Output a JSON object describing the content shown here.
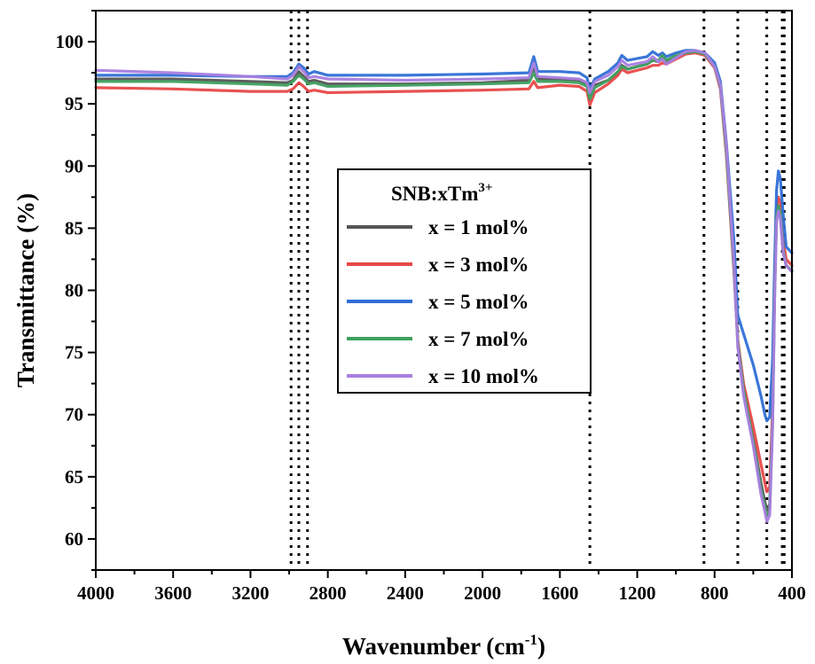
{
  "chart_data": {
    "type": "line",
    "title": "",
    "xlabel": "Wavenumber (cm",
    "xlabel_sup": "-1",
    "xlabel_end": ")",
    "ylabel": "Transmittance (%)",
    "xlim": [
      4000,
      400
    ],
    "ylim": [
      57.5,
      102.5
    ],
    "x_reversed": true,
    "x_ticks": [
      4000,
      3600,
      3200,
      2800,
      2400,
      2000,
      1600,
      1200,
      800,
      400
    ],
    "y_ticks": [
      60,
      65,
      70,
      75,
      80,
      85,
      90,
      95,
      100
    ],
    "grid": false,
    "reference_lines_x": [
      2990,
      2950,
      2905,
      1445,
      855,
      680,
      530,
      450,
      440
    ],
    "legend": {
      "title": "SNB:xTm",
      "title_sup": "3+",
      "placement": "center"
    },
    "series": [
      {
        "name": "x = 1 mol%",
        "color": "#555555",
        "points": [
          [
            4000,
            97.0
          ],
          [
            3600,
            97.0
          ],
          [
            3200,
            96.8
          ],
          [
            3010,
            96.7
          ],
          [
            2980,
            96.9
          ],
          [
            2950,
            97.6
          ],
          [
            2925,
            97.2
          ],
          [
            2900,
            96.8
          ],
          [
            2870,
            96.9
          ],
          [
            2800,
            96.6
          ],
          [
            2400,
            96.6
          ],
          [
            2000,
            96.7
          ],
          [
            1760,
            96.9
          ],
          [
            1735,
            97.9
          ],
          [
            1715,
            97.0
          ],
          [
            1600,
            97.0
          ],
          [
            1500,
            96.9
          ],
          [
            1460,
            96.6
          ],
          [
            1445,
            95.6
          ],
          [
            1420,
            96.5
          ],
          [
            1350,
            96.9
          ],
          [
            1300,
            97.5
          ],
          [
            1280,
            98.1
          ],
          [
            1250,
            97.8
          ],
          [
            1150,
            98.2
          ],
          [
            1120,
            98.5
          ],
          [
            1090,
            98.4
          ],
          [
            1070,
            98.7
          ],
          [
            1050,
            98.4
          ],
          [
            1000,
            98.8
          ],
          [
            950,
            99.1
          ],
          [
            900,
            99.2
          ],
          [
            850,
            99.0
          ],
          [
            800,
            98.0
          ],
          [
            770,
            96.4
          ],
          [
            740,
            91.5
          ],
          [
            700,
            82.0
          ],
          [
            680,
            76.0
          ],
          [
            650,
            72.0
          ],
          [
            600,
            68.0
          ],
          [
            560,
            64.5
          ],
          [
            540,
            63.0
          ],
          [
            530,
            62.3
          ],
          [
            515,
            62.8
          ],
          [
            500,
            70.0
          ],
          [
            490,
            80.0
          ],
          [
            480,
            86.0
          ],
          [
            470,
            86.7
          ],
          [
            460,
            86.0
          ],
          [
            445,
            83.0
          ],
          [
            430,
            82.0
          ],
          [
            400,
            81.5
          ]
        ]
      },
      {
        "name": "x = 3 mol%",
        "color": "#e84848",
        "points": [
          [
            4000,
            96.3
          ],
          [
            3600,
            96.2
          ],
          [
            3200,
            96.0
          ],
          [
            3010,
            96.0
          ],
          [
            2980,
            96.2
          ],
          [
            2950,
            96.7
          ],
          [
            2925,
            96.4
          ],
          [
            2900,
            96.0
          ],
          [
            2870,
            96.1
          ],
          [
            2800,
            95.9
          ],
          [
            2400,
            96.0
          ],
          [
            2000,
            96.1
          ],
          [
            1760,
            96.2
          ],
          [
            1735,
            96.8
          ],
          [
            1715,
            96.3
          ],
          [
            1600,
            96.5
          ],
          [
            1500,
            96.4
          ],
          [
            1460,
            96.0
          ],
          [
            1445,
            94.9
          ],
          [
            1420,
            95.9
          ],
          [
            1350,
            96.6
          ],
          [
            1300,
            97.3
          ],
          [
            1280,
            97.8
          ],
          [
            1250,
            97.5
          ],
          [
            1150,
            97.9
          ],
          [
            1120,
            98.1
          ],
          [
            1090,
            98.1
          ],
          [
            1070,
            98.3
          ],
          [
            1050,
            98.2
          ],
          [
            1000,
            98.6
          ],
          [
            950,
            99.0
          ],
          [
            900,
            99.1
          ],
          [
            850,
            98.9
          ],
          [
            800,
            97.9
          ],
          [
            770,
            96.2
          ],
          [
            740,
            91.0
          ],
          [
            700,
            81.5
          ],
          [
            680,
            76.0
          ],
          [
            650,
            72.5
          ],
          [
            600,
            69.0
          ],
          [
            560,
            66.0
          ],
          [
            540,
            64.5
          ],
          [
            530,
            63.8
          ],
          [
            515,
            64.2
          ],
          [
            500,
            70.5
          ],
          [
            490,
            80.0
          ],
          [
            480,
            86.5
          ],
          [
            470,
            87.5
          ],
          [
            460,
            87.0
          ],
          [
            445,
            84.0
          ],
          [
            430,
            82.5
          ],
          [
            400,
            82.0
          ]
        ]
      },
      {
        "name": "x = 5 mol%",
        "color": "#2f6fd6",
        "points": [
          [
            4000,
            97.3
          ],
          [
            3600,
            97.3
          ],
          [
            3200,
            97.2
          ],
          [
            3010,
            97.2
          ],
          [
            2980,
            97.5
          ],
          [
            2950,
            98.2
          ],
          [
            2925,
            97.9
          ],
          [
            2900,
            97.4
          ],
          [
            2870,
            97.6
          ],
          [
            2800,
            97.3
          ],
          [
            2400,
            97.3
          ],
          [
            2000,
            97.4
          ],
          [
            1760,
            97.5
          ],
          [
            1735,
            98.8
          ],
          [
            1715,
            97.6
          ],
          [
            1600,
            97.6
          ],
          [
            1500,
            97.5
          ],
          [
            1460,
            97.1
          ],
          [
            1445,
            96.2
          ],
          [
            1420,
            97.0
          ],
          [
            1350,
            97.6
          ],
          [
            1300,
            98.3
          ],
          [
            1280,
            98.9
          ],
          [
            1250,
            98.5
          ],
          [
            1150,
            98.8
          ],
          [
            1120,
            99.2
          ],
          [
            1090,
            98.9
          ],
          [
            1070,
            99.1
          ],
          [
            1050,
            98.8
          ],
          [
            1000,
            99.1
          ],
          [
            950,
            99.3
          ],
          [
            900,
            99.3
          ],
          [
            850,
            99.1
          ],
          [
            800,
            98.3
          ],
          [
            770,
            96.8
          ],
          [
            740,
            92.0
          ],
          [
            700,
            84.0
          ],
          [
            680,
            78.0
          ],
          [
            650,
            76.5
          ],
          [
            600,
            74.0
          ],
          [
            560,
            71.5
          ],
          [
            540,
            70.0
          ],
          [
            530,
            69.5
          ],
          [
            515,
            69.8
          ],
          [
            500,
            74.5
          ],
          [
            490,
            82.0
          ],
          [
            480,
            88.0
          ],
          [
            470,
            89.6
          ],
          [
            460,
            89.0
          ],
          [
            445,
            86.0
          ],
          [
            430,
            83.5
          ],
          [
            400,
            83.0
          ]
        ]
      },
      {
        "name": "x = 7 mol%",
        "color": "#3fa060",
        "points": [
          [
            4000,
            96.8
          ],
          [
            3600,
            96.8
          ],
          [
            3200,
            96.6
          ],
          [
            3010,
            96.5
          ],
          [
            2980,
            96.8
          ],
          [
            2950,
            97.3
          ],
          [
            2925,
            97.0
          ],
          [
            2900,
            96.6
          ],
          [
            2870,
            96.7
          ],
          [
            2800,
            96.4
          ],
          [
            2400,
            96.5
          ],
          [
            2000,
            96.6
          ],
          [
            1760,
            96.7
          ],
          [
            1735,
            97.5
          ],
          [
            1715,
            96.8
          ],
          [
            1600,
            96.8
          ],
          [
            1500,
            96.7
          ],
          [
            1460,
            96.4
          ],
          [
            1445,
            95.4
          ],
          [
            1420,
            96.3
          ],
          [
            1350,
            96.9
          ],
          [
            1300,
            97.6
          ],
          [
            1280,
            98.0
          ],
          [
            1250,
            97.8
          ],
          [
            1150,
            98.2
          ],
          [
            1120,
            98.5
          ],
          [
            1090,
            98.5
          ],
          [
            1070,
            98.9
          ],
          [
            1050,
            98.5
          ],
          [
            1000,
            98.9
          ],
          [
            950,
            99.1
          ],
          [
            900,
            99.2
          ],
          [
            850,
            99.0
          ],
          [
            800,
            98.0
          ],
          [
            770,
            96.4
          ],
          [
            740,
            91.3
          ],
          [
            700,
            81.8
          ],
          [
            680,
            75.8
          ],
          [
            650,
            72.0
          ],
          [
            600,
            67.8
          ],
          [
            560,
            64.0
          ],
          [
            540,
            62.6
          ],
          [
            530,
            61.8
          ],
          [
            515,
            62.3
          ],
          [
            500,
            69.5
          ],
          [
            490,
            79.5
          ],
          [
            480,
            85.8
          ],
          [
            470,
            86.8
          ],
          [
            460,
            86.2
          ],
          [
            445,
            83.2
          ],
          [
            430,
            82.0
          ],
          [
            400,
            81.6
          ]
        ]
      },
      {
        "name": "x = 10 mol%",
        "color": "#a97ee0",
        "points": [
          [
            4000,
            97.7
          ],
          [
            3600,
            97.5
          ],
          [
            3200,
            97.2
          ],
          [
            3010,
            97.0
          ],
          [
            2980,
            97.3
          ],
          [
            2950,
            98.0
          ],
          [
            2925,
            97.6
          ],
          [
            2900,
            97.1
          ],
          [
            2870,
            97.2
          ],
          [
            2800,
            97.0
          ],
          [
            2400,
            96.9
          ],
          [
            2000,
            97.0
          ],
          [
            1760,
            97.1
          ],
          [
            1735,
            98.3
          ],
          [
            1715,
            97.2
          ],
          [
            1600,
            97.1
          ],
          [
            1500,
            97.0
          ],
          [
            1460,
            96.7
          ],
          [
            1445,
            95.9
          ],
          [
            1420,
            96.8
          ],
          [
            1350,
            97.3
          ],
          [
            1300,
            98.0
          ],
          [
            1280,
            98.5
          ],
          [
            1250,
            98.1
          ],
          [
            1150,
            98.4
          ],
          [
            1120,
            98.8
          ],
          [
            1090,
            98.4
          ],
          [
            1070,
            98.6
          ],
          [
            1050,
            98.2
          ],
          [
            1000,
            98.7
          ],
          [
            950,
            99.2
          ],
          [
            900,
            99.3
          ],
          [
            850,
            99.1
          ],
          [
            800,
            98.0
          ],
          [
            770,
            96.5
          ],
          [
            740,
            91.8
          ],
          [
            700,
            82.2
          ],
          [
            680,
            75.5
          ],
          [
            650,
            71.5
          ],
          [
            600,
            67.5
          ],
          [
            560,
            63.6
          ],
          [
            540,
            62.2
          ],
          [
            530,
            61.4
          ],
          [
            515,
            61.9
          ],
          [
            500,
            69.0
          ],
          [
            490,
            79.0
          ],
          [
            480,
            85.5
          ],
          [
            470,
            86.4
          ],
          [
            460,
            85.8
          ],
          [
            445,
            83.0
          ],
          [
            430,
            82.0
          ],
          [
            400,
            81.5
          ]
        ]
      }
    ]
  }
}
